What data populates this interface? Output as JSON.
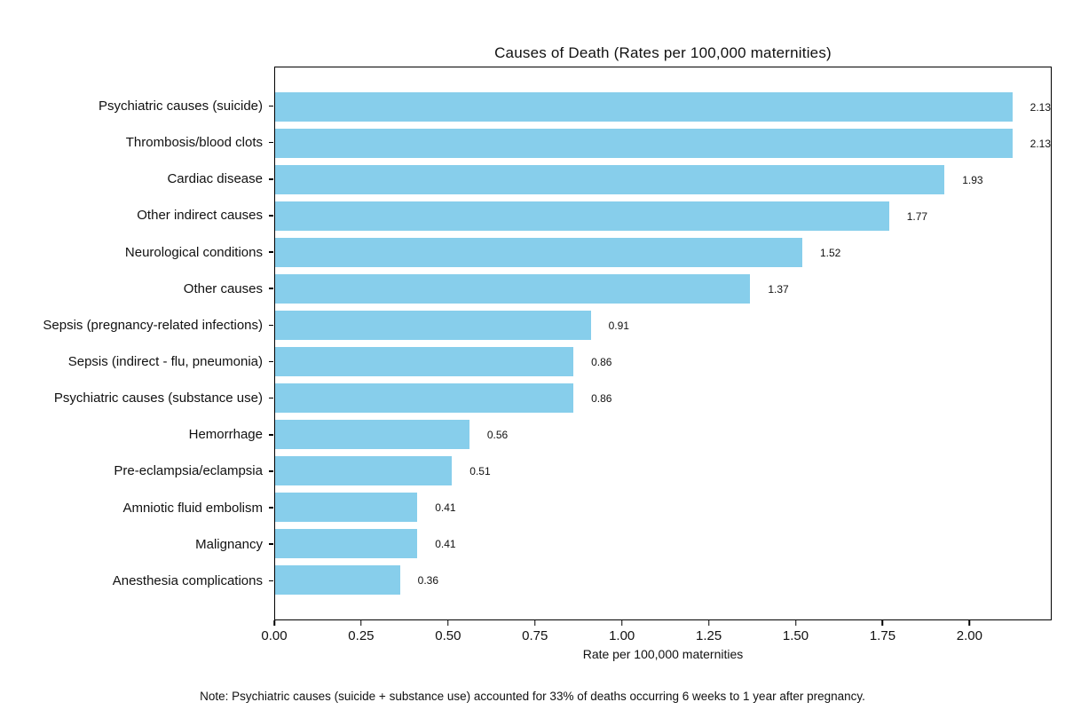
{
  "chart_data": {
    "type": "bar",
    "orientation": "horizontal",
    "title": "Causes of Death (Rates per 100,000 maternities)",
    "xlabel": "Rate per 100,000 maternities",
    "ylabel": "",
    "categories": [
      "Psychiatric causes (suicide)",
      "Thrombosis/blood clots",
      "Cardiac disease",
      "Other indirect causes",
      "Neurological conditions",
      "Other causes",
      "Sepsis (pregnancy-related infections)",
      "Sepsis (indirect - flu, pneumonia)",
      "Psychiatric causes (substance use)",
      "Hemorrhage",
      "Pre-eclampsia/eclampsia",
      "Amniotic fluid embolism",
      "Malignancy",
      "Anesthesia complications"
    ],
    "values": [
      2.13,
      2.13,
      1.93,
      1.77,
      1.52,
      1.37,
      0.91,
      0.86,
      0.86,
      0.56,
      0.51,
      0.41,
      0.41,
      0.36
    ],
    "value_labels": [
      "2.13",
      "2.13",
      "1.93",
      "1.77",
      "1.52",
      "1.37",
      "0.91",
      "0.86",
      "0.86",
      "0.56",
      "0.51",
      "0.41",
      "0.41",
      "0.36"
    ],
    "x_ticks": [
      0.0,
      0.25,
      0.5,
      0.75,
      1.0,
      1.25,
      1.5,
      1.75,
      2.0
    ],
    "x_tick_labels": [
      "0.00",
      "0.25",
      "0.50",
      "0.75",
      "1.00",
      "1.25",
      "1.50",
      "1.75",
      "2.00"
    ],
    "xlim": [
      0,
      2.2365
    ],
    "grid": false,
    "legend": null,
    "bar_color": "#87CEEB",
    "note": "Note: Psychiatric causes (suicide + substance use) accounted for 33% of deaths occurring 6 weeks to 1 year after pregnancy."
  }
}
